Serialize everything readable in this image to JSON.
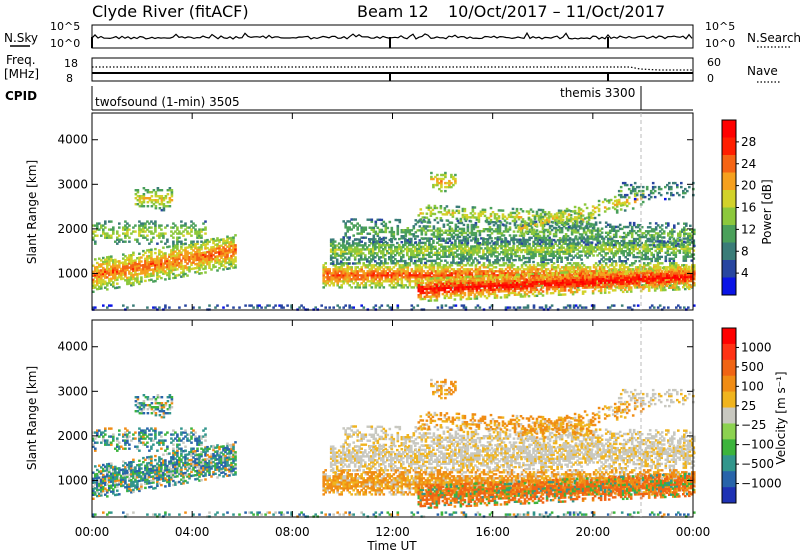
{
  "header": {
    "station": "Clyde River (fitACF)",
    "beam": "Beam 12",
    "date_range": "10/Oct/2017 – 11/Oct/2017"
  },
  "chart_data": [
    {
      "type": "line",
      "panel": "nsky-nsearch",
      "left_label": "N.Sky",
      "right_label": "N.Search",
      "left_ticks": [
        "10^5",
        "10^0"
      ],
      "right_ticks": [
        "10^5",
        "10^0"
      ]
    },
    {
      "type": "line",
      "panel": "freq-nave",
      "left_label_line1": "Freq.",
      "left_label_line2": "[MHz]",
      "right_label": "Nave",
      "left_ticks": [
        "18",
        "8"
      ],
      "right_ticks": [
        "60",
        "0"
      ]
    },
    {
      "type": "line",
      "panel": "cpid",
      "label": "CPID",
      "segments": [
        {
          "name": "twofsound (1-min) 3505"
        },
        {
          "name": "themis 3300"
        }
      ]
    },
    {
      "type": "heatmap",
      "panel": "power",
      "ylabel": "Slant Range [km]",
      "yticks": [
        1000,
        2000,
        3000,
        4000
      ],
      "ylim": [
        180,
        4600
      ],
      "colorbar_label": "Power [dB]",
      "colorbar_ticks": [
        "28",
        "24",
        "20",
        "16",
        "12",
        "8",
        "4"
      ],
      "colorbar_colors": [
        "#0a14e6",
        "#2846a0",
        "#3a7c78",
        "#4aa05a",
        "#8cc83c",
        "#d2d22a",
        "#f5a01e",
        "#f56414",
        "#ff1e00",
        "#ff0000"
      ]
    },
    {
      "type": "heatmap",
      "panel": "velocity",
      "ylabel": "Slant Range [km]",
      "yticks": [
        1000,
        2000,
        3000,
        4000
      ],
      "ylim": [
        180,
        4600
      ],
      "xlabel": "Time UT",
      "xticks": [
        "00:00",
        "04:00",
        "08:00",
        "12:00",
        "16:00",
        "20:00",
        "00:00"
      ],
      "colorbar_label": "Velocity [m s⁻¹]",
      "colorbar_ticks": [
        "1000",
        "500",
        "100",
        "25",
        "−25",
        "−100",
        "−500",
        "−1000"
      ],
      "colorbar_colors": [
        "#1e32b4",
        "#2864aa",
        "#32968c",
        "#3cb43c",
        "#8cd250",
        "#c8c8c0",
        "#f0b41e",
        "#f08c14",
        "#f06414",
        "#ff3214",
        "#ff0000"
      ]
    }
  ]
}
